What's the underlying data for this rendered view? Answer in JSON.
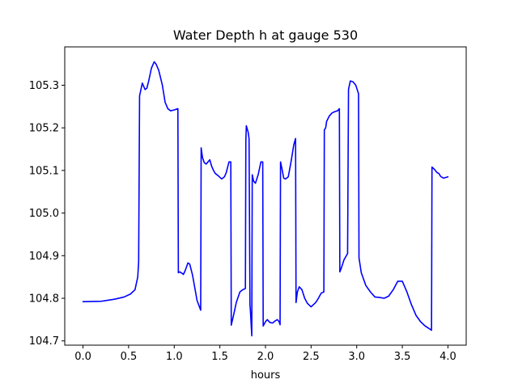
{
  "chart_data": {
    "type": "line",
    "title": "Water Depth h at gauge 530",
    "xlabel": "hours",
    "ylabel": "",
    "xlim": [
      -0.2,
      4.2
    ],
    "ylim": [
      104.69,
      105.39
    ],
    "xticks": [
      0.0,
      0.5,
      1.0,
      1.5,
      2.0,
      2.5,
      3.0,
      3.5,
      4.0
    ],
    "xtick_labels": [
      "0.0",
      "0.5",
      "1.0",
      "1.5",
      "2.0",
      "2.5",
      "3.0",
      "3.5",
      "4.0"
    ],
    "yticks": [
      104.7,
      104.8,
      104.9,
      105.0,
      105.1,
      105.2,
      105.3
    ],
    "ytick_labels": [
      "104.7",
      "104.8",
      "104.9",
      "105.0",
      "105.1",
      "105.2",
      "105.3"
    ],
    "grid": false,
    "series": [
      {
        "color": "#0000ff",
        "x": [
          0.0,
          0.2,
          0.35,
          0.45,
          0.52,
          0.57,
          0.6,
          0.61,
          0.62,
          0.65,
          0.68,
          0.7,
          0.72,
          0.75,
          0.78,
          0.8,
          0.83,
          0.87,
          0.9,
          0.93,
          0.96,
          1.0,
          1.04,
          1.045,
          1.06,
          1.09,
          1.1,
          1.12,
          1.15,
          1.17,
          1.2,
          1.25,
          1.29,
          1.295,
          1.31,
          1.33,
          1.35,
          1.37,
          1.39,
          1.41,
          1.43,
          1.45,
          1.48,
          1.52,
          1.55,
          1.57,
          1.6,
          1.62,
          1.625,
          1.65,
          1.68,
          1.72,
          1.75,
          1.78,
          1.785,
          1.79,
          1.81,
          1.82,
          1.83,
          1.835,
          1.85,
          1.855,
          1.87,
          1.89,
          1.92,
          1.95,
          1.97,
          1.975,
          2.0,
          2.02,
          2.05,
          2.08,
          2.1,
          2.13,
          2.15,
          2.16,
          2.165,
          2.18,
          2.2,
          2.22,
          2.25,
          2.28,
          2.31,
          2.33,
          2.335,
          2.35,
          2.37,
          2.4,
          2.43,
          2.46,
          2.5,
          2.55,
          2.58,
          2.61,
          2.64,
          2.645,
          2.66,
          2.67,
          2.7,
          2.73,
          2.76,
          2.79,
          2.81,
          2.815,
          2.83,
          2.86,
          2.9,
          2.91,
          2.93,
          2.96,
          2.99,
          3.02,
          3.025,
          3.05,
          3.1,
          3.15,
          3.2,
          3.25,
          3.3,
          3.35,
          3.4,
          3.45,
          3.5,
          3.55,
          3.6,
          3.65,
          3.7,
          3.75,
          3.8,
          3.82,
          3.825,
          3.85,
          3.88,
          3.9,
          3.92,
          3.95,
          4.0
        ],
        "y": [
          104.792,
          104.793,
          104.798,
          104.803,
          104.81,
          104.82,
          104.85,
          104.885,
          105.275,
          105.305,
          105.29,
          105.293,
          105.31,
          105.34,
          105.355,
          105.35,
          105.335,
          105.3,
          105.26,
          105.245,
          105.24,
          105.242,
          105.245,
          104.86,
          104.862,
          104.858,
          104.856,
          104.865,
          104.883,
          104.88,
          104.855,
          104.795,
          104.772,
          105.153,
          105.13,
          105.118,
          105.115,
          105.12,
          105.125,
          105.11,
          105.1,
          105.093,
          105.088,
          105.08,
          105.085,
          105.095,
          105.12,
          105.12,
          104.737,
          104.76,
          104.79,
          104.815,
          104.82,
          104.823,
          105.17,
          105.205,
          105.19,
          105.175,
          104.785,
          104.77,
          104.712,
          105.09,
          105.075,
          105.07,
          105.09,
          105.12,
          105.12,
          104.735,
          104.745,
          104.75,
          104.743,
          104.742,
          104.746,
          104.75,
          104.745,
          104.738,
          105.12,
          105.105,
          105.082,
          105.08,
          105.085,
          105.12,
          105.16,
          105.175,
          104.79,
          104.815,
          104.827,
          104.82,
          104.8,
          104.788,
          104.78,
          104.79,
          104.8,
          104.812,
          104.815,
          105.195,
          105.2,
          105.215,
          105.228,
          105.235,
          105.238,
          105.24,
          105.245,
          104.862,
          104.87,
          104.89,
          104.905,
          105.29,
          105.31,
          105.308,
          105.3,
          105.28,
          104.895,
          104.86,
          104.83,
          104.815,
          104.803,
          104.802,
          104.8,
          104.805,
          104.82,
          104.84,
          104.84,
          104.815,
          104.785,
          104.76,
          104.745,
          104.735,
          104.728,
          104.725,
          105.108,
          105.103,
          105.095,
          105.093,
          105.086,
          105.082,
          105.085
        ]
      }
    ]
  }
}
